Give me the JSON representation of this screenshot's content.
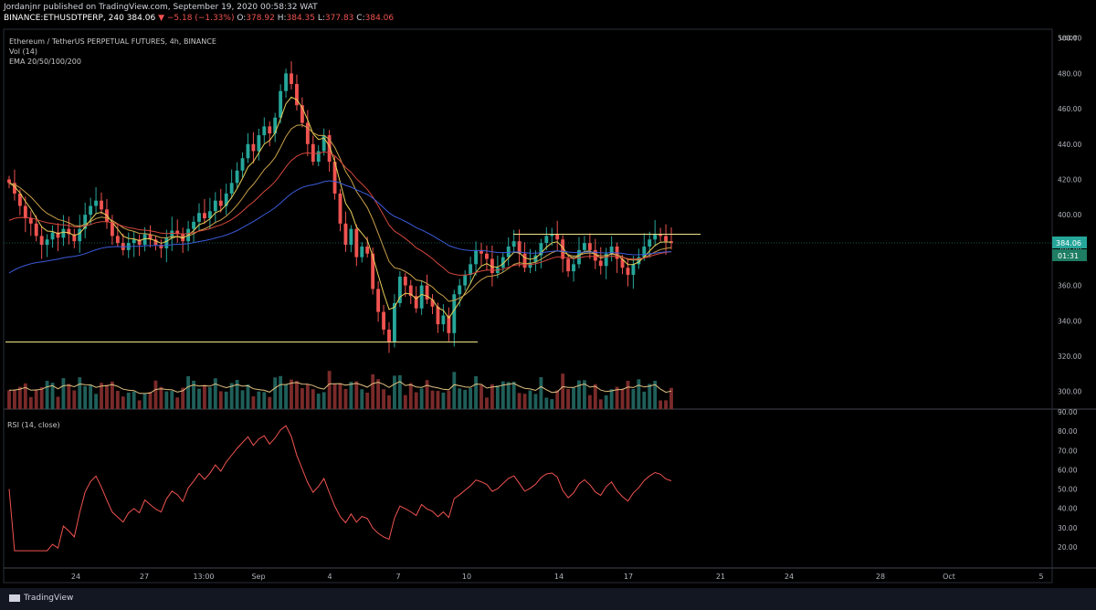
{
  "header": {
    "publisher": "Jordanjnr published on TradingView.com, September 19, 2020 00:58:32 WAT",
    "symbol": "BINANCE:ETHUSDTPERP, 240",
    "last": "384.06",
    "change": "▼ −5.18 (−1.33%)",
    "o_label": "O:",
    "o": "378.92",
    "h_label": "H:",
    "h": "384.35",
    "l_label": "L:",
    "l": "377.83",
    "c_label": "C:",
    "c": "384.06"
  },
  "legend": {
    "title": "Ethereum / TetherUS PERPETUAL FUTURES, 4h, BINANCE",
    "vol": "Vol (14)",
    "ema": "EMA 20/50/100/200"
  },
  "rsi_label": "RSI (14, close)",
  "footer": {
    "brand": "TradingView"
  },
  "colors": {
    "up": "#26a69a",
    "down": "#ef5350",
    "ema20": "#e8cf5a",
    "ema50": "#c9a14a",
    "ema100": "#d4473d",
    "ema200": "#3b5bdb",
    "rsi": "#ef5350",
    "hline": "#f0e68c"
  },
  "chart_data": [
    {
      "type": "candlestick",
      "unit": "USDT",
      "ylim": [
        290,
        505
      ],
      "y_ticks": [
        "500.00",
        "480.00",
        "460.00",
        "440.00",
        "420.00",
        "400.00",
        "380.00",
        "360.00",
        "340.00",
        "320.00",
        "300.00"
      ],
      "x_ticks": [
        "24",
        "27",
        "13:00",
        "Sep",
        "4",
        "7",
        "10",
        "14",
        "17",
        "21",
        "24",
        "28",
        "Oct",
        "5"
      ],
      "last_price": "384.06",
      "countdown": "01:31",
      "closes": [
        418,
        412,
        405,
        398,
        395,
        388,
        383,
        386,
        390,
        387,
        392,
        389,
        385,
        392,
        400,
        405,
        408,
        403,
        396,
        388,
        384,
        380,
        384,
        386,
        383,
        389,
        386,
        383,
        381,
        387,
        391,
        389,
        385,
        392,
        396,
        401,
        398,
        402,
        408,
        405,
        412,
        418,
        425,
        432,
        440,
        436,
        445,
        450,
        446,
        455,
        470,
        480,
        474,
        462,
        452,
        440,
        430,
        436,
        445,
        430,
        412,
        395,
        383,
        392,
        376,
        382,
        378,
        358,
        345,
        335,
        328,
        350,
        365,
        360,
        354,
        347,
        360,
        352,
        348,
        338,
        343,
        333,
        355,
        360,
        366,
        372,
        380,
        378,
        375,
        367,
        370,
        376,
        382,
        385,
        378,
        370,
        373,
        377,
        384,
        388,
        389,
        386,
        375,
        368,
        372,
        380,
        384,
        380,
        374,
        371,
        378,
        382,
        375,
        370,
        366,
        372,
        376,
        382,
        386,
        389,
        388,
        385,
        384
      ],
      "horizontal_levels": [
        389,
        328
      ],
      "volume_ticks": "",
      "rsi": {
        "ylim": [
          10,
          90
        ],
        "y_ticks": [
          "90.00",
          "80.00",
          "70.00",
          "60.00",
          "50.00",
          "40.00",
          "30.00",
          "20.00"
        ]
      }
    }
  ]
}
